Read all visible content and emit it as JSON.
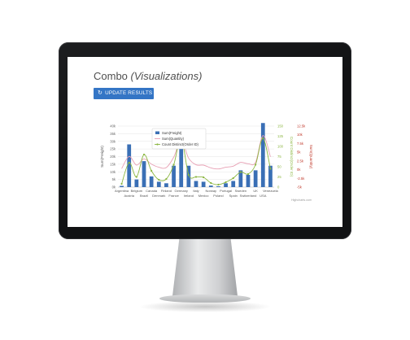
{
  "page": {
    "title": "Combo",
    "title_sub": "(Visualizations)",
    "update_button": "UPDATE RESULTS",
    "update_icon": "refresh-icon",
    "credit": "Highcharts.com"
  },
  "chart_data": {
    "type": "bar",
    "title": "",
    "categories": [
      "Argentina",
      "Austria",
      "Belgium",
      "Brazil",
      "Canada",
      "Denmark",
      "Finland",
      "France",
      "Germany",
      "Ireland",
      "Italy",
      "Mexico",
      "Norway",
      "Poland",
      "Portugal",
      "Spain",
      "Sweden",
      "Switzerland",
      "UK",
      "USA",
      "Venezuela"
    ],
    "series": [
      {
        "name": "Sum(Freight)",
        "kind": "column",
        "axis": "left",
        "color": "#3a6fb5",
        "values": [
          800,
          28000,
          5000,
          17000,
          7000,
          3500,
          2500,
          14000,
          32000,
          14000,
          4000,
          3500,
          1000,
          500,
          2500,
          4000,
          11000,
          8000,
          11000,
          42000,
          14000
        ]
      },
      {
        "name": "Sum(Quantity)",
        "kind": "spline",
        "axis": "right-2",
        "color": "#e8a0b4",
        "values": [
          300,
          3800,
          1300,
          3100,
          1600,
          700,
          600,
          3600,
          8400,
          3300,
          1400,
          1300,
          500,
          200,
          700,
          1000,
          2100,
          1700,
          2100,
          9800,
          3700
        ]
      },
      {
        "name": "Count Distinct(Order ID)",
        "kind": "spline",
        "axis": "right-1",
        "color": "#8bb640",
        "values": [
          8,
          60,
          25,
          80,
          40,
          18,
          20,
          55,
          120,
          30,
          25,
          24,
          10,
          6,
          12,
          22,
          37,
          32,
          55,
          120,
          45
        ]
      }
    ],
    "y_axes": [
      {
        "id": "left",
        "label": "Sum(Freight)",
        "ylim": [
          0,
          40000
        ],
        "ticks": [
          "0k",
          "5k",
          "10k",
          "15k",
          "20k",
          "25k",
          "30k",
          "35k",
          "40k"
        ]
      },
      {
        "id": "right-1",
        "label": "Count Distinct(Order ID)",
        "ylim": [
          0,
          150
        ],
        "ticks": [
          "0",
          "25",
          "50",
          "75",
          "100",
          "125",
          "150"
        ],
        "color": "#8bb640"
      },
      {
        "id": "right-2",
        "label": "Sum(Quantity)",
        "ylim": [
          -5000,
          12500
        ],
        "ticks": [
          "-5k",
          "-2.5k",
          "0k",
          "2.5k",
          "5k",
          "7.5k",
          "10k",
          "12.5k"
        ],
        "color": "#c0392b"
      }
    ],
    "legend_placement": "top-left-inside",
    "grid": true
  }
}
